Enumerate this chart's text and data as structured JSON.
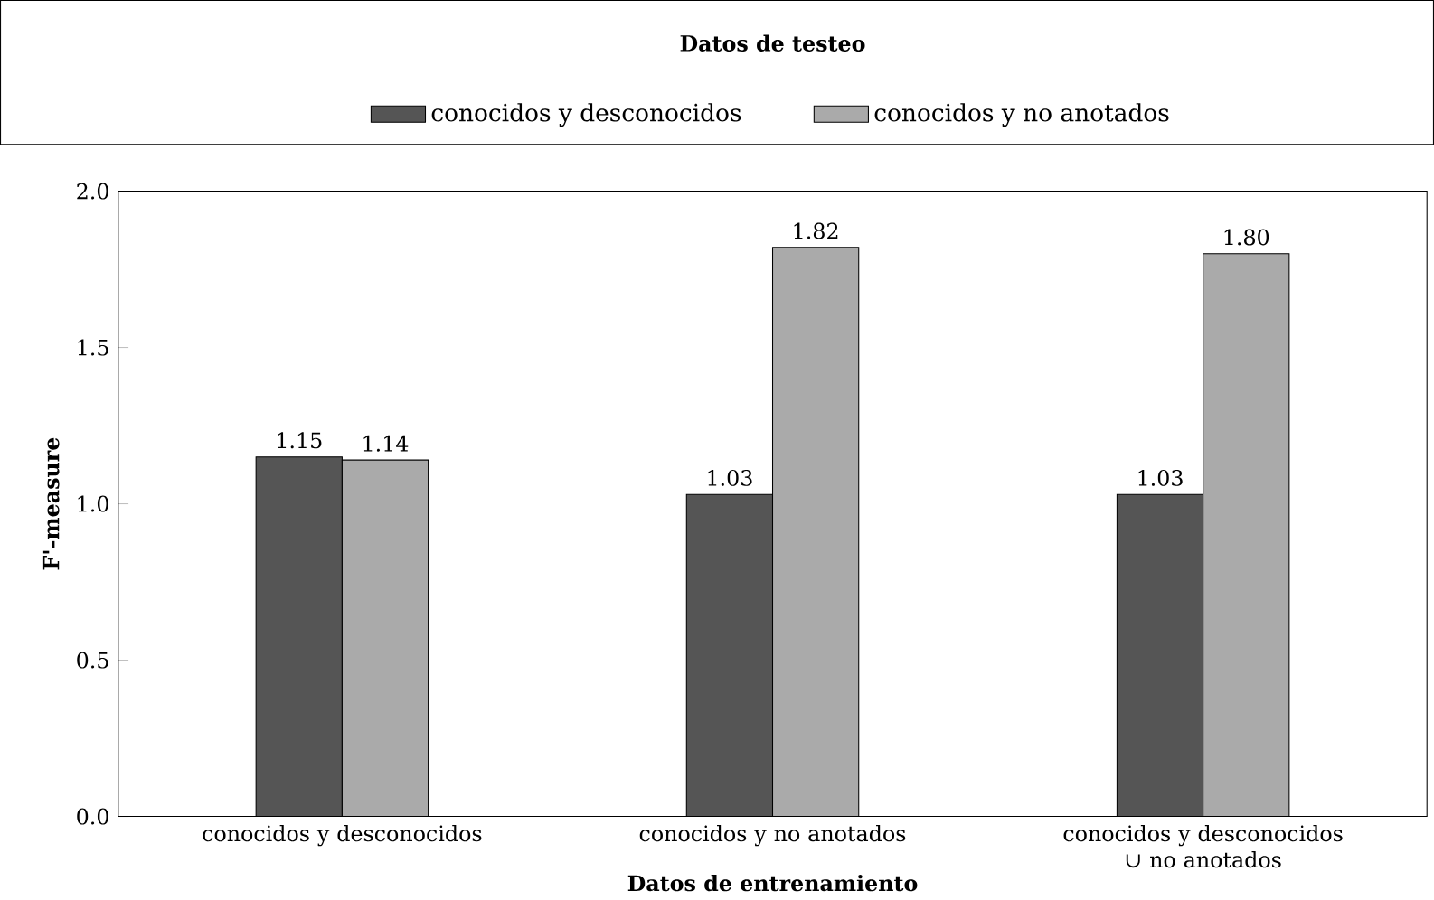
{
  "chart_data": {
    "type": "bar",
    "legend_title": "Datos de testeo",
    "xlabel": "Datos de entrenamiento",
    "ylabel": "F'-measure",
    "categories": [
      "conocidos y desconocidos",
      "conocidos y no anotados",
      "conocidos y desconocidos ∪ no anotados"
    ],
    "series": [
      {
        "name": "conocidos y desconocidos",
        "color": "#555555",
        "values": [
          1.15,
          1.03,
          1.03
        ],
        "value_labels": [
          "1.15",
          "1.03",
          "1.03"
        ]
      },
      {
        "name": "conocidos y no anotados",
        "color": "#aaaaaa",
        "values": [
          1.14,
          1.82,
          1.8
        ],
        "value_labels": [
          "1.14",
          "1.82",
          "1.80"
        ]
      }
    ],
    "ylim": [
      0,
      2
    ],
    "yticks": [
      {
        "value": 0,
        "label": "0.0"
      },
      {
        "value": 0.5,
        "label": "0.5"
      },
      {
        "value": 1,
        "label": "1.0"
      },
      {
        "value": 1.5,
        "label": "1.5"
      },
      {
        "value": 2,
        "label": "2.0"
      }
    ],
    "legend": "top",
    "grid": false
  }
}
